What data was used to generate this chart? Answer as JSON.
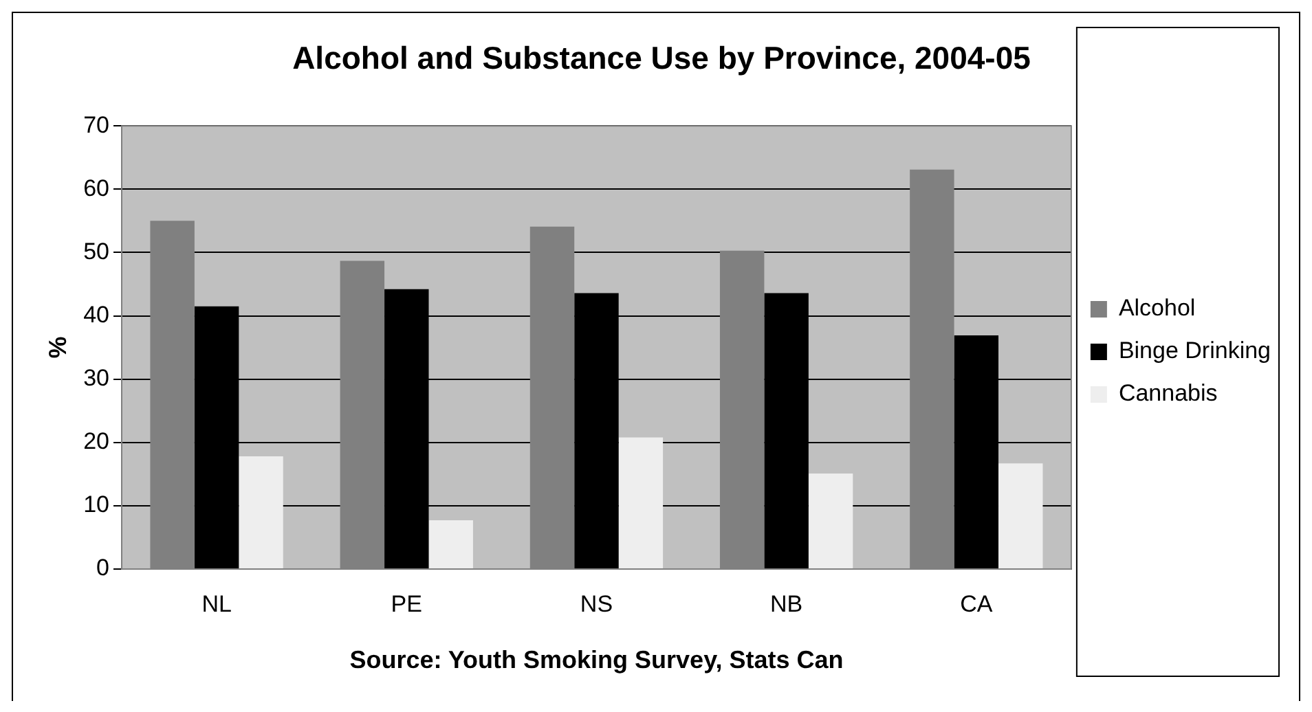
{
  "chart_data": {
    "type": "bar",
    "title": "Alcohol and Substance Use by Province, 2004-05",
    "xlabel": "Source: Youth Smoking Survey, Stats Can",
    "ylabel": "%",
    "categories": [
      "NL",
      "PE",
      "NS",
      "NB",
      "CA"
    ],
    "series": [
      {
        "name": "Alcohol",
        "color": "#808080",
        "values": [
          55,
          48.7,
          54.1,
          50.3,
          63.1
        ]
      },
      {
        "name": "Binge Drinking",
        "color": "#000000",
        "values": [
          41.5,
          44.2,
          43.6,
          43.6,
          36.9
        ]
      },
      {
        "name": "Cannabis",
        "color": "#eeeeee",
        "values": [
          17.8,
          7.7,
          20.8,
          15.1,
          16.7
        ]
      }
    ],
    "ylim": [
      0,
      70
    ],
    "yticks": [
      0,
      10,
      20,
      30,
      40,
      50,
      60,
      70
    ],
    "grid": "y",
    "legend": "right"
  }
}
